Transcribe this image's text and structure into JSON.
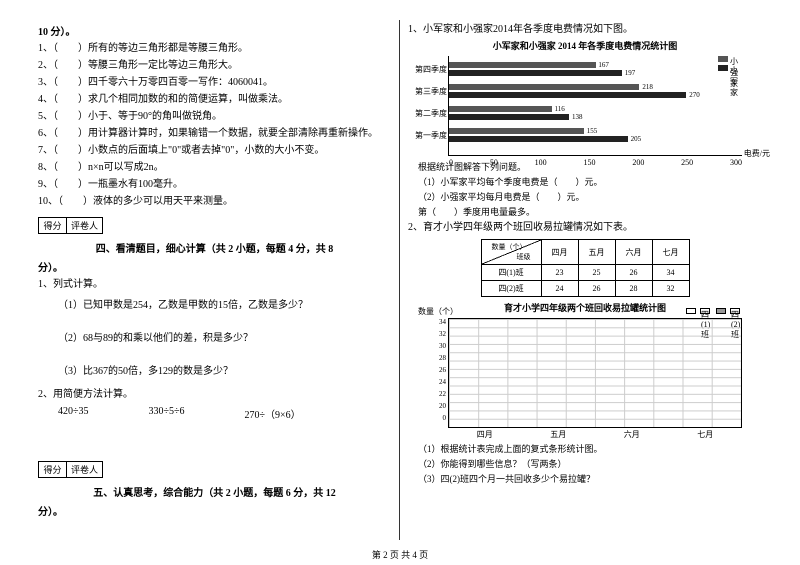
{
  "left": {
    "heading": "10 分）。",
    "judgeItems": [
      "1、（　　）所有的等边三角形都是等腰三角形。",
      "2、（　　）等腰三角形一定比等边三角形大。",
      "3、（　　）四千零六十万零四百零一写作：4060041。",
      "4、（　　）求几个相同加数的和的简便运算，叫做乘法。",
      "5、（　　）小于、等于90°的角叫做锐角。",
      "6、（　　）用计算器计算时，如果输错一个数据，就要全部清除再重新操作。",
      "7、（　　）小数点的后面填上\"0\"或者去掉\"0\"，小数的大小不变。",
      "8、（　　）n×n可以写成2n。",
      "9、（　　）一瓶墨水有100毫升。",
      "10、（　　）液体的多少可以用天平来测量。"
    ],
    "score": {
      "c1": "得分",
      "c2": "评卷人"
    },
    "sec4": "四、看清题目，细心计算（共 2 小题，每题 4 分，共 8",
    "sec4end": "分）。",
    "q1": "1、列式计算。",
    "q1a": "（1）已知甲数是254，乙数是甲数的15倍，乙数是多少？",
    "q1b": "（2）68与89的和乘以他们的差，积是多少？",
    "q1c": "（3）比367的50倍，多129的数是多少？",
    "q2": "2、用简便方法计算。",
    "q2a": "420÷35",
    "q2b": "330÷5÷6",
    "q2c": "270÷（9×6）",
    "sec5": "五、认真思考，综合能力（共 2 小题，每题 6 分，共 12",
    "sec5end": "分）。"
  },
  "right": {
    "q1": "1、小军家和小强家2014年各季度电费情况如下图。",
    "chartTitle": "小军家和小强家 2014 年各季度电费情况统计图",
    "legend": {
      "a": "小强家",
      "b": "小军家"
    },
    "quarters": [
      "第四季度",
      "第三季度",
      "第二季度",
      "第一季度"
    ],
    "barData": [
      {
        "label": "第四季度",
        "v1": 167,
        "v2": 197,
        "w1": 50,
        "w2": 59
      },
      {
        "label": "第三季度",
        "v1": 218,
        "v2": 270,
        "w1": 65,
        "w2": 81
      },
      {
        "label": "第二季度",
        "v1": 116,
        "v2": 138,
        "w1": 35,
        "w2": 41
      },
      {
        "label": "第一季度",
        "v1": 155,
        "v2": 205,
        "w1": 46,
        "w2": 61
      }
    ],
    "xticks": [
      "0",
      "50",
      "100",
      "150",
      "200",
      "250",
      "300"
    ],
    "xlabel": "电费/元",
    "sub1": "根据统计图解答下列问题。",
    "sub1a": "（1）小军家平均每个季度电费是（　　）元。",
    "sub1b": "（2）小强家平均每月电费是（　　）元。",
    "sub1c": "第（　　）季度用电量最多。",
    "q2": "2、育才小学四年级两个班回收易拉罐情况如下表。",
    "table": {
      "diag1": "数量（个）",
      "diag2": "班级",
      "months": [
        "四月",
        "五月",
        "六月",
        "七月"
      ],
      "rows": [
        {
          "name": "四(1)班",
          "v": [
            "23",
            "25",
            "26",
            "34"
          ]
        },
        {
          "name": "四(2)班",
          "v": [
            "24",
            "26",
            "28",
            "32"
          ]
        }
      ]
    },
    "gridTitle": "育才小学四年级两个班回收易拉罐统计图",
    "gridY": [
      "34",
      "32",
      "30",
      "28",
      "26",
      "24",
      "22",
      "20",
      "0"
    ],
    "gridX": [
      "四月",
      "五月",
      "六月",
      "七月"
    ],
    "gridLegend": {
      "a": "四(1)班",
      "b": "四(2)班"
    },
    "ylabel": "数量（个）",
    "sub2a": "（1）根据统计表完成上面的复式条形统计图。",
    "sub2b": "（2）你能得到哪些信息？（写两条）",
    "sub2c": "（3）四(2)班四个月一共回收多少个易拉罐？"
  },
  "footer": "第 2 页 共 4 页",
  "colors": {
    "bar1": "#555",
    "bar2": "#222",
    "grid": "#ccc"
  }
}
